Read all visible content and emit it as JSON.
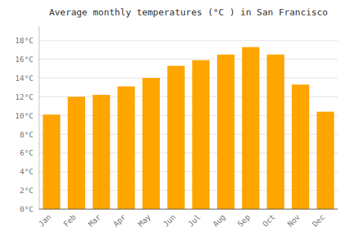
{
  "chart_data": {
    "type": "bar",
    "title": "Average monthly temperatures (°C ) in San Francisco",
    "categories": [
      "Jan",
      "Feb",
      "Mar",
      "Apr",
      "May",
      "Jun",
      "Jul",
      "Aug",
      "Sep",
      "Oct",
      "Nov",
      "Dec"
    ],
    "values": [
      10.1,
      12.0,
      12.2,
      13.1,
      14.0,
      15.3,
      15.9,
      16.5,
      17.3,
      16.5,
      13.3,
      10.4
    ],
    "color": "#FFA500",
    "ylim": [
      0,
      19.5
    ],
    "yticks": [
      {
        "value": 0,
        "label": "0°C"
      },
      {
        "value": 2,
        "label": "2°C"
      },
      {
        "value": 4,
        "label": "4°C"
      },
      {
        "value": 6,
        "label": "6°C"
      },
      {
        "value": 8,
        "label": "8°C"
      },
      {
        "value": 10,
        "label": "10°C"
      },
      {
        "value": 12,
        "label": "12°C"
      },
      {
        "value": 14,
        "label": "14°C"
      },
      {
        "value": 16,
        "label": "16°C"
      },
      {
        "value": 18,
        "label": "18°C"
      }
    ],
    "grid": true
  }
}
